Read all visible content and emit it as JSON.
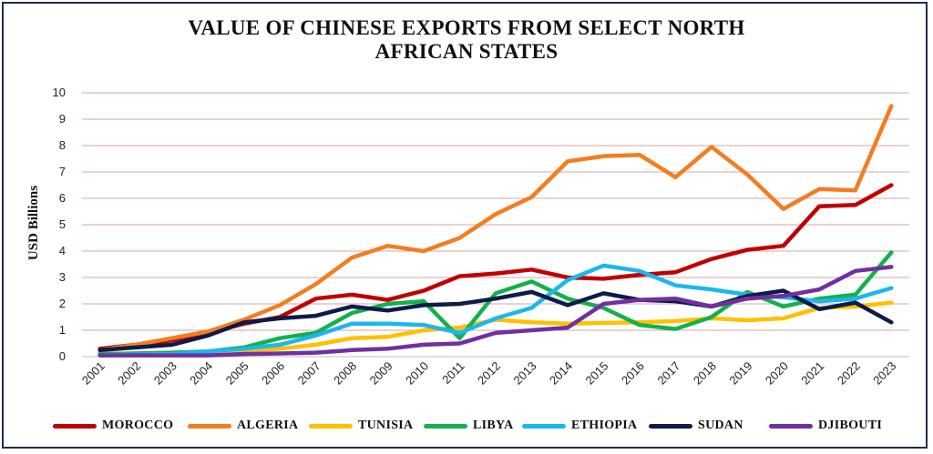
{
  "chart_data": {
    "type": "line",
    "title_lines": [
      "VALUE OF CHINESE EXPORTS FROM SELECT NORTH",
      "AFRICAN STATES"
    ],
    "ylabel": "USD Billions",
    "xlabel": "",
    "ylim": [
      0,
      10
    ],
    "yticks": [
      "0",
      "1",
      "2",
      "3",
      "4",
      "5",
      "6",
      "7",
      "8",
      "9",
      "10"
    ],
    "grid": true,
    "legend_position": "bottom",
    "x": [
      "2001",
      "2002",
      "2003",
      "2004",
      "2005",
      "2006",
      "2007",
      "2008",
      "2009",
      "2010",
      "2011",
      "2012",
      "2013",
      "2014",
      "2015",
      "2016",
      "2017",
      "2018",
      "2019",
      "2020",
      "2021",
      "2022",
      "2023"
    ],
    "series": [
      {
        "name": "MOROCCO",
        "color": "#c00000",
        "values": [
          0.3,
          0.45,
          0.62,
          0.9,
          1.25,
          1.5,
          2.2,
          2.35,
          2.15,
          2.5,
          3.05,
          3.15,
          3.3,
          3.0,
          2.95,
          3.1,
          3.2,
          3.7,
          4.05,
          4.2,
          5.7,
          5.75,
          6.5
        ]
      },
      {
        "name": "ALGERIA",
        "color": "#f47d20",
        "values": [
          0.25,
          0.45,
          0.7,
          0.95,
          1.4,
          1.95,
          2.75,
          3.75,
          4.2,
          4.0,
          4.5,
          5.4,
          6.05,
          7.4,
          7.6,
          7.65,
          6.8,
          7.95,
          6.9,
          5.6,
          6.35,
          6.3,
          9.5
        ]
      },
      {
        "name": "TUNISIA",
        "color": "#ffc000",
        "values": [
          0.1,
          0.12,
          0.15,
          0.18,
          0.22,
          0.3,
          0.45,
          0.7,
          0.75,
          1.0,
          1.1,
          1.4,
          1.3,
          1.25,
          1.28,
          1.3,
          1.35,
          1.45,
          1.38,
          1.45,
          1.85,
          1.9,
          2.05
        ]
      },
      {
        "name": "LIBYA",
        "color": "#14b14b",
        "values": [
          0.1,
          0.12,
          0.15,
          0.2,
          0.35,
          0.7,
          0.9,
          1.65,
          2.0,
          2.1,
          0.7,
          2.4,
          2.85,
          2.2,
          1.85,
          1.2,
          1.05,
          1.5,
          2.45,
          1.9,
          2.2,
          2.35,
          3.95
        ]
      },
      {
        "name": "ETHIOPIA",
        "color": "#1db6ee",
        "values": [
          0.05,
          0.08,
          0.1,
          0.2,
          0.3,
          0.45,
          0.8,
          1.25,
          1.25,
          1.2,
          0.9,
          1.45,
          1.85,
          2.9,
          3.45,
          3.25,
          2.7,
          2.55,
          2.35,
          2.25,
          2.1,
          2.2,
          2.6
        ]
      },
      {
        "name": "SUDAN",
        "color": "#0d1b4a",
        "values": [
          0.25,
          0.35,
          0.45,
          0.8,
          1.3,
          1.45,
          1.55,
          1.9,
          1.75,
          1.95,
          2.0,
          2.2,
          2.45,
          1.95,
          2.4,
          2.15,
          2.1,
          1.9,
          2.3,
          2.5,
          1.8,
          2.05,
          1.3
        ]
      },
      {
        "name": "DJIBOUTI",
        "color": "#7030a0",
        "values": [
          0.05,
          0.05,
          0.05,
          0.05,
          0.1,
          0.12,
          0.15,
          0.25,
          0.3,
          0.45,
          0.5,
          0.9,
          1.0,
          1.1,
          2.0,
          2.15,
          2.2,
          1.9,
          2.2,
          2.3,
          2.55,
          3.25,
          3.4
        ]
      }
    ]
  }
}
